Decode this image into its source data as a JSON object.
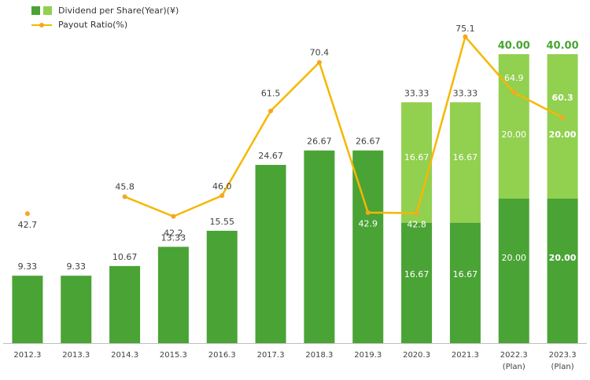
{
  "legend": {
    "dividend_label": "Dividend per Share(Year)(¥)",
    "payout_label": "Payout Ratio(%)"
  },
  "colors": {
    "base": "#4aa335",
    "addition": "#92d050",
    "line": "#f5b800",
    "marker": "#f5a623",
    "label": "#404040",
    "bold_label": "#4aa335"
  },
  "chart_data": {
    "type": "bar",
    "stacked": true,
    "categories": [
      "2012.3",
      "2013.3",
      "2014.3",
      "2015.3",
      "2016.3",
      "2017.3",
      "2018.3",
      "2019.3",
      "2020.3",
      "2021.3",
      "2022.3",
      "2023.3"
    ],
    "category_notes": [
      "",
      "",
      "",
      "",
      "",
      "",
      "",
      "",
      "",
      "",
      "(Plan)",
      "(Plan)"
    ],
    "series": [
      {
        "name": "Dividend per Share(Year)(¥)",
        "values": [
          9.33,
          9.33,
          10.67,
          13.33,
          15.55,
          24.67,
          26.67,
          26.67,
          16.67,
          16.67,
          20.0,
          20.0
        ]
      },
      {
        "values": [
          0,
          0,
          0,
          0,
          0,
          0,
          0,
          0,
          16.67,
          16.67,
          20.0,
          20.0
        ]
      }
    ],
    "totals": [
      "9.33",
      "9.33",
      "10.67",
      "13.33",
      "15.55",
      "24.67",
      "26.67",
      "26.67",
      "33.33",
      "33.33",
      "40.00",
      "40.00"
    ],
    "base_labels": [
      "",
      "",
      "",
      "",
      "",
      "",
      "",
      "",
      "16.67",
      "16.67",
      "20.00",
      "20.00"
    ],
    "addition_labels": [
      "",
      "",
      "",
      "",
      "",
      "",
      "",
      "",
      "16.67",
      "16.67",
      "20.00",
      "20.00"
    ],
    "line": {
      "name": "Payout Ratio(%)",
      "values": [
        42.7,
        null,
        45.8,
        42.2,
        46.0,
        61.5,
        70.4,
        42.9,
        42.8,
        75.1,
        64.9,
        60.3
      ],
      "labels": [
        "42.7",
        "",
        "45.8",
        "42.2",
        "46.0",
        "61.5",
        "70.4",
        "42.9",
        "42.8",
        "75.1",
        "64.9",
        "60.3"
      ]
    },
    "ylim": [
      0,
      40
    ],
    "line_ylim": [
      20,
      80
    ],
    "grid": false
  }
}
